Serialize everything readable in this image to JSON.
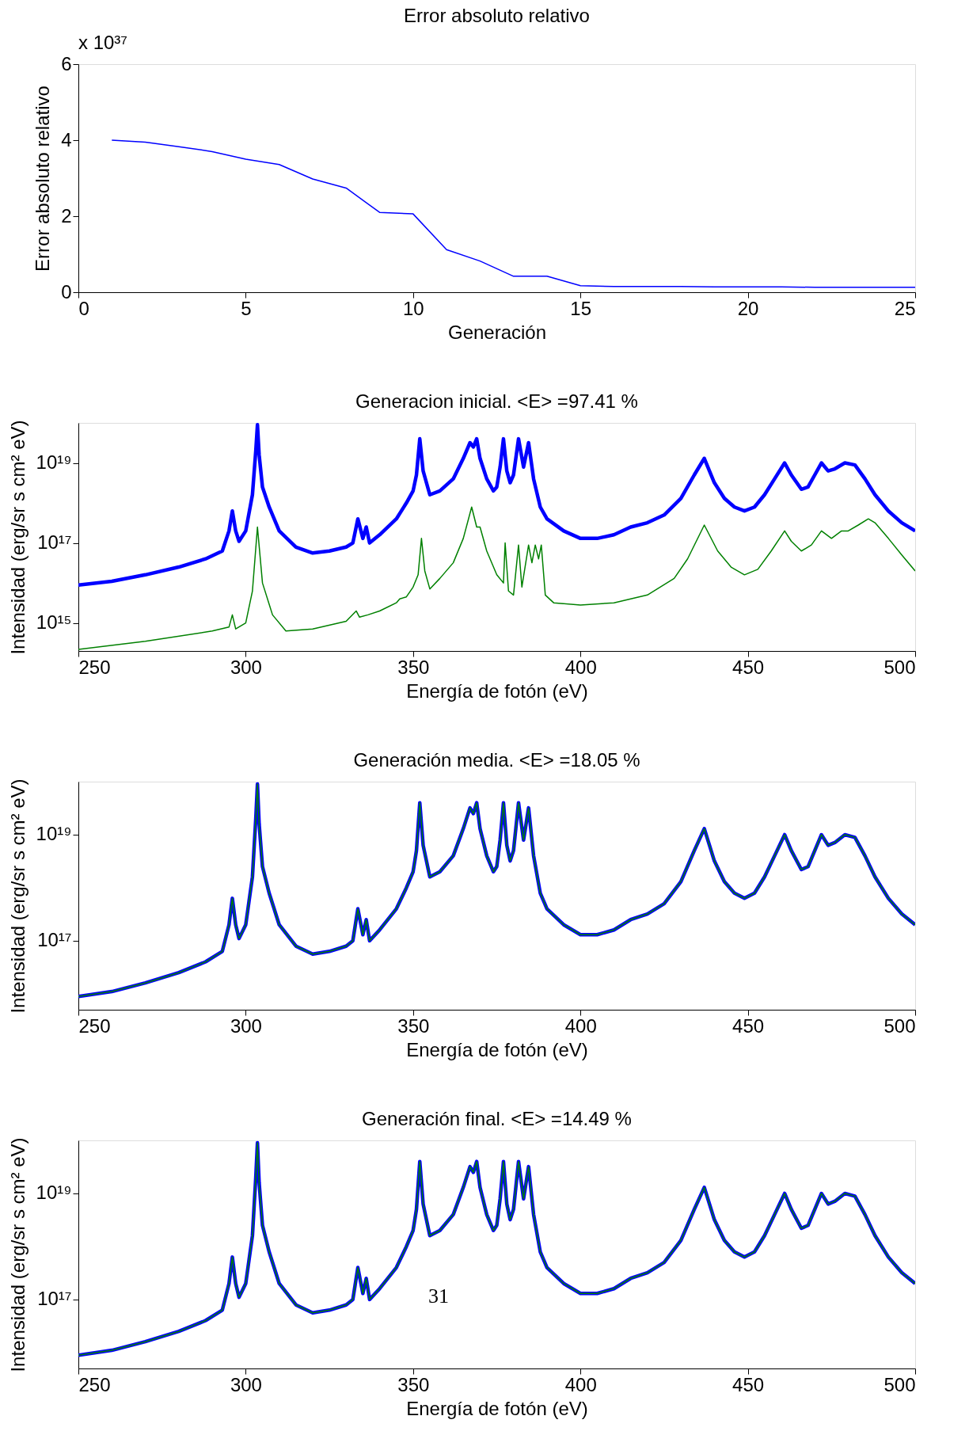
{
  "chart_data": [
    {
      "type": "line",
      "title": "Error absoluto relativo",
      "xlabel": "Generación",
      "ylabel": "Error absoluto relativo",
      "x": [
        1,
        2,
        3,
        4,
        5,
        6,
        7,
        8,
        9,
        10,
        11,
        12,
        13,
        14,
        15,
        16,
        17,
        18,
        19,
        20,
        21,
        22,
        23,
        24,
        25
      ],
      "series": [
        {
          "color": "#0000ff",
          "values": [
            4.0,
            3.95,
            3.83,
            3.7,
            3.5,
            3.36,
            2.98,
            2.74,
            2.1,
            2.06,
            1.12,
            0.82,
            0.42,
            0.42,
            0.17,
            0.15,
            0.15,
            0.15,
            0.14,
            0.14,
            0.14,
            0.13,
            0.13,
            0.13,
            0.13
          ]
        }
      ],
      "xlim": [
        0,
        25
      ],
      "xticks": [
        0,
        5,
        10,
        15,
        20,
        25
      ],
      "ylim": [
        0,
        6
      ],
      "yticks": [
        0,
        2,
        4,
        6
      ],
      "annotations": [
        "x 10³⁷"
      ]
    },
    {
      "type": "line",
      "title": "Generacion inicial. <E> =97.41 %",
      "xlabel": "Energía de fotón (eV)",
      "ylabel": "Intensidad (erg/sr s cm² eV)",
      "log": "y",
      "x": [
        250,
        260,
        270,
        280,
        288,
        293,
        295,
        296,
        297,
        298,
        300,
        302,
        303,
        303.5,
        304,
        305,
        307,
        310,
        315,
        320,
        325,
        330,
        332,
        333.5,
        335,
        336,
        337,
        340,
        345,
        348,
        350,
        351,
        352,
        353,
        355,
        358,
        362,
        365,
        367,
        368,
        369,
        370,
        372,
        374,
        375,
        376,
        377,
        378,
        379,
        380,
        381.5,
        383,
        384.5,
        386,
        388,
        390,
        395,
        400,
        405,
        410,
        415,
        420,
        425,
        430,
        434,
        437,
        440,
        443,
        446,
        449,
        452,
        455,
        458,
        461,
        463,
        466,
        468,
        470,
        472,
        474,
        476,
        479,
        482,
        485,
        488,
        492,
        496,
        500
      ],
      "series": [
        {
          "color": "#0000ff",
          "values": [
            8900000000000000.0,
            1.1e+16,
            1.6e+16,
            2.5e+16,
            4e+16,
            6.3e+16,
            2e+17,
            6.3e+17,
            2e+17,
            1.1e+17,
            2e+17,
            1.6e+18,
            2e+19,
            9e+19,
            1.6e+19,
            2.5e+18,
            7.9e+17,
            2e+17,
            7.9e+16,
            5.6e+16,
            6.3e+16,
            7.9e+16,
            1e+17,
            4e+17,
            1.3e+17,
            2.5e+17,
            1e+17,
            1.6e+17,
            4e+17,
            1e+18,
            2e+18,
            5e+18,
            4e+19,
            6.3e+18,
            1.6e+18,
            2e+18,
            4e+18,
            1.3e+19,
            3.2e+19,
            2.5e+19,
            4e+19,
            1.3e+19,
            4e+18,
            2e+18,
            2.5e+18,
            7.9e+18,
            4e+19,
            6.3e+18,
            3.2e+18,
            5e+18,
            4e+19,
            7.9e+18,
            3.2e+19,
            4e+18,
            7.9e+17,
            4e+17,
            2e+17,
            1.3e+17,
            1.3e+17,
            1.6e+17,
            2.5e+17,
            3.2e+17,
            5e+17,
            1.3e+18,
            5e+18,
            1.3e+19,
            3.2e+18,
            1.3e+18,
            7.9e+17,
            6.3e+17,
            7.9e+17,
            1.6e+18,
            4e+18,
            1e+19,
            5e+18,
            2.2e+18,
            2.5e+18,
            5e+18,
            1e+19,
            6.3e+18,
            7.1e+18,
            1e+19,
            8.9e+18,
            4e+18,
            1.6e+18,
            6.3e+17,
            3.2e+17,
            2e+17
          ]
        },
        {
          "color": "#008000",
          "x": [
            250,
            270,
            290,
            295,
            296,
            297,
            300,
            302,
            303.5,
            305,
            308,
            312,
            320,
            330,
            333,
            334,
            336.5,
            340,
            345,
            346,
            348,
            350,
            351.5,
            352.5,
            353.5,
            355,
            358,
            362,
            365,
            367.5,
            369,
            370,
            372,
            375,
            377,
            377.5,
            378.5,
            380,
            381.5,
            382.5,
            384.5,
            385.5,
            386.5,
            387.5,
            388.3,
            389.5,
            392,
            400,
            410,
            420,
            428,
            432,
            437,
            441,
            445,
            449,
            453,
            457,
            461,
            463,
            466,
            469,
            472,
            475,
            478,
            480,
            483,
            486,
            488,
            492,
            496,
            500
          ],
          "values": [
            220000000000000.0,
            350000000000000.0,
            630000000000000.0,
            790000000000000.0,
            1600000000000000.0,
            710000000000000.0,
            1000000000000000.0,
            6300000000000000.0,
            2.5e+17,
            1e+16,
            1600000000000000.0,
            630000000000000.0,
            710000000000000.0,
            1100000000000000.0,
            2000000000000000.0,
            1400000000000000.0,
            1600000000000000.0,
            2000000000000000.0,
            3200000000000000.0,
            4000000000000000.0,
            4500000000000000.0,
            7900000000000000.0,
            1.6e+16,
            1.3e+17,
            2e+16,
            7100000000000000.0,
            1.3e+16,
            3.2e+16,
            1.3e+17,
            7.9e+17,
            2.5e+17,
            2.5e+17,
            6.3e+16,
            1.6e+16,
            1e+16,
            1e+17,
            6300000000000000.0,
            5000000000000000.0,
            8.9e+16,
            7900000000000000.0,
            8.9e+16,
            3.2e+16,
            8.9e+16,
            4e+16,
            8.9e+16,
            5000000000000000.0,
            3200000000000000.0,
            2800000000000000.0,
            3200000000000000.0,
            5000000000000000.0,
            1.3e+16,
            4e+16,
            2.8e+17,
            6.3e+16,
            2.5e+16,
            1.6e+16,
            2.2e+16,
            6.3e+16,
            2e+17,
            1.1e+17,
            6.3e+16,
            8.9e+16,
            2e+17,
            1.3e+17,
            2e+17,
            2e+17,
            2.8e+17,
            4e+17,
            3.2e+17,
            1.3e+17,
            5e+16,
            2e+16
          ]
        }
      ],
      "xlim": [
        250,
        500
      ],
      "xticks": [
        250,
        300,
        350,
        400,
        450,
        500
      ],
      "ylim": [
        200000000000000.0,
        1e+20
      ],
      "yticks": [
        {
          "value": 1000000000000000.0,
          "label": "10¹⁵"
        },
        {
          "value": 1e+17,
          "label": "10¹⁷"
        },
        {
          "value": 1e+19,
          "label": "10¹⁹"
        }
      ]
    },
    {
      "type": "line",
      "title": "Generación media. <E> =18.05 %",
      "xlabel": "Energía de fotón (eV)",
      "ylabel": "Intensidad (erg/sr s cm² eV)",
      "log": "y",
      "x": [
        250,
        260,
        270,
        280,
        288,
        293,
        295,
        296,
        297,
        298,
        300,
        302,
        303,
        303.5,
        304,
        305,
        307,
        310,
        315,
        320,
        325,
        330,
        332,
        333.5,
        335,
        336,
        337,
        340,
        345,
        348,
        350,
        351,
        352,
        353,
        355,
        358,
        362,
        365,
        367,
        368,
        369,
        370,
        372,
        374,
        375,
        376,
        377,
        378,
        379,
        380,
        381.5,
        383,
        384.5,
        386,
        388,
        390,
        395,
        400,
        405,
        410,
        415,
        420,
        425,
        430,
        434,
        437,
        440,
        443,
        446,
        449,
        452,
        455,
        458,
        461,
        463,
        466,
        468,
        470,
        472,
        474,
        476,
        479,
        482,
        485,
        488,
        492,
        496,
        500
      ],
      "series": [
        {
          "color": "#0000ff",
          "values": [
            8900000000000000.0,
            1.1e+16,
            1.6e+16,
            2.5e+16,
            4e+16,
            6.3e+16,
            2e+17,
            6.3e+17,
            2e+17,
            1.1e+17,
            2e+17,
            1.6e+18,
            2e+19,
            9e+19,
            1.6e+19,
            2.5e+18,
            7.9e+17,
            2e+17,
            7.9e+16,
            5.6e+16,
            6.3e+16,
            7.9e+16,
            1e+17,
            4e+17,
            1.3e+17,
            2.5e+17,
            1e+17,
            1.6e+17,
            4e+17,
            1e+18,
            2e+18,
            5e+18,
            4e+19,
            6.3e+18,
            1.6e+18,
            2e+18,
            4e+18,
            1.3e+19,
            3.2e+19,
            2.5e+19,
            4e+19,
            1.3e+19,
            4e+18,
            2e+18,
            2.5e+18,
            7.9e+18,
            4e+19,
            6.3e+18,
            3.2e+18,
            5e+18,
            4e+19,
            7.9e+18,
            3.2e+19,
            4e+18,
            7.9e+17,
            4e+17,
            2e+17,
            1.3e+17,
            1.3e+17,
            1.6e+17,
            2.5e+17,
            3.2e+17,
            5e+17,
            1.3e+18,
            5e+18,
            1.3e+19,
            3.2e+18,
            1.3e+18,
            7.9e+17,
            6.3e+17,
            7.9e+17,
            1.6e+18,
            4e+18,
            1e+19,
            5e+18,
            2.2e+18,
            2.5e+18,
            5e+18,
            1e+19,
            6.3e+18,
            7.1e+18,
            1e+19,
            8.9e+18,
            4e+18,
            1.6e+18,
            6.3e+17,
            3.2e+17,
            2e+17
          ]
        },
        {
          "color": "#008000",
          "values": [
            8900000000000000.0,
            1.1e+16,
            1.6e+16,
            2.5e+16,
            4e+16,
            6.3e+16,
            2e+17,
            6.3e+17,
            2e+17,
            1.1e+17,
            2e+17,
            1.6e+18,
            2e+19,
            9e+19,
            1.6e+19,
            2.5e+18,
            7.9e+17,
            2e+17,
            7.9e+16,
            5.6e+16,
            6.3e+16,
            7.9e+16,
            1e+17,
            4e+17,
            1.3e+17,
            2.5e+17,
            1e+17,
            1.6e+17,
            4e+17,
            1e+18,
            2e+18,
            5e+18,
            4e+19,
            6.3e+18,
            1.6e+18,
            2e+18,
            4e+18,
            1.3e+19,
            3.2e+19,
            2.5e+19,
            4e+19,
            1.3e+19,
            4e+18,
            2e+18,
            2.5e+18,
            7.9e+18,
            4e+19,
            6.3e+18,
            3.2e+18,
            5e+18,
            4e+19,
            7.9e+18,
            3.2e+19,
            4e+18,
            7.9e+17,
            4e+17,
            2e+17,
            1.3e+17,
            1.3e+17,
            1.6e+17,
            2.5e+17,
            3.2e+17,
            5e+17,
            1.3e+18,
            5e+18,
            1.3e+19,
            3.2e+18,
            1.3e+18,
            7.9e+17,
            6.3e+17,
            7.9e+17,
            1.6e+18,
            4e+18,
            1e+19,
            5e+18,
            2.2e+18,
            2.5e+18,
            5e+18,
            1e+19,
            6.3e+18,
            7.1e+18,
            1e+19,
            8.9e+18,
            4e+18,
            1.6e+18,
            6.3e+17,
            3.2e+17,
            2e+17
          ]
        }
      ],
      "xlim": [
        250,
        500
      ],
      "xticks": [
        250,
        300,
        350,
        400,
        450,
        500
      ],
      "ylim": [
        5000000000000000.0,
        1e+20
      ],
      "yticks": [
        {
          "value": 1e+17,
          "label": "10¹⁷"
        },
        {
          "value": 1e+19,
          "label": "10¹⁹"
        }
      ]
    },
    {
      "type": "line",
      "title": "Generación final. <E> =14.49 %",
      "xlabel": "Energía de fotón (eV)",
      "ylabel": "Intensidad (erg/sr s cm² eV)",
      "log": "y",
      "x": [
        250,
        260,
        270,
        280,
        288,
        293,
        295,
        296,
        297,
        298,
        300,
        302,
        303,
        303.5,
        304,
        305,
        307,
        310,
        315,
        320,
        325,
        330,
        332,
        333.5,
        335,
        336,
        337,
        340,
        345,
        348,
        350,
        351,
        352,
        353,
        355,
        358,
        362,
        365,
        367,
        368,
        369,
        370,
        372,
        374,
        375,
        376,
        377,
        378,
        379,
        380,
        381.5,
        383,
        384.5,
        386,
        388,
        390,
        395,
        400,
        405,
        410,
        415,
        420,
        425,
        430,
        434,
        437,
        440,
        443,
        446,
        449,
        452,
        455,
        458,
        461,
        463,
        466,
        468,
        470,
        472,
        474,
        476,
        479,
        482,
        485,
        488,
        492,
        496,
        500
      ],
      "series": [
        {
          "color": "#0000ff",
          "values": [
            8900000000000000.0,
            1.1e+16,
            1.6e+16,
            2.5e+16,
            4e+16,
            6.3e+16,
            2e+17,
            6.3e+17,
            2e+17,
            1.1e+17,
            2e+17,
            1.6e+18,
            2e+19,
            9e+19,
            1.6e+19,
            2.5e+18,
            7.9e+17,
            2e+17,
            7.9e+16,
            5.6e+16,
            6.3e+16,
            7.9e+16,
            1e+17,
            4e+17,
            1.3e+17,
            2.5e+17,
            1e+17,
            1.6e+17,
            4e+17,
            1e+18,
            2e+18,
            5e+18,
            4e+19,
            6.3e+18,
            1.6e+18,
            2e+18,
            4e+18,
            1.3e+19,
            3.2e+19,
            2.5e+19,
            4e+19,
            1.3e+19,
            4e+18,
            2e+18,
            2.5e+18,
            7.9e+18,
            4e+19,
            6.3e+18,
            3.2e+18,
            5e+18,
            4e+19,
            7.9e+18,
            3.2e+19,
            4e+18,
            7.9e+17,
            4e+17,
            2e+17,
            1.3e+17,
            1.3e+17,
            1.6e+17,
            2.5e+17,
            3.2e+17,
            5e+17,
            1.3e+18,
            5e+18,
            1.3e+19,
            3.2e+18,
            1.3e+18,
            7.9e+17,
            6.3e+17,
            7.9e+17,
            1.6e+18,
            4e+18,
            1e+19,
            5e+18,
            2.2e+18,
            2.5e+18,
            5e+18,
            1e+19,
            6.3e+18,
            7.1e+18,
            1e+19,
            8.9e+18,
            4e+18,
            1.6e+18,
            6.3e+17,
            3.2e+17,
            2e+17
          ]
        },
        {
          "color": "#008000",
          "values": [
            8900000000000000.0,
            1.1e+16,
            1.6e+16,
            2.5e+16,
            4e+16,
            6.3e+16,
            2e+17,
            6.3e+17,
            2e+17,
            1.1e+17,
            2e+17,
            1.6e+18,
            2e+19,
            9e+19,
            1.6e+19,
            2.5e+18,
            7.9e+17,
            2e+17,
            7.9e+16,
            5.6e+16,
            6.3e+16,
            7.9e+16,
            1e+17,
            4e+17,
            1.3e+17,
            2.5e+17,
            1e+17,
            1.6e+17,
            4e+17,
            1e+18,
            2e+18,
            5e+18,
            4e+19,
            6.3e+18,
            1.6e+18,
            2e+18,
            4e+18,
            1.3e+19,
            3.2e+19,
            2.5e+19,
            4e+19,
            1.3e+19,
            4e+18,
            2e+18,
            2.5e+18,
            7.9e+18,
            4e+19,
            6.3e+18,
            3.2e+18,
            5e+18,
            4e+19,
            7.9e+18,
            3.2e+19,
            4e+18,
            7.9e+17,
            4e+17,
            2e+17,
            1.3e+17,
            1.3e+17,
            1.6e+17,
            2.5e+17,
            3.2e+17,
            5e+17,
            1.3e+18,
            5e+18,
            1.3e+19,
            3.2e+18,
            1.3e+18,
            7.9e+17,
            6.3e+17,
            7.9e+17,
            1.6e+18,
            4e+18,
            1e+19,
            5e+18,
            2.2e+18,
            2.5e+18,
            5e+18,
            1e+19,
            6.3e+18,
            7.1e+18,
            1e+19,
            8.9e+18,
            4e+18,
            1.6e+18,
            6.3e+17,
            3.2e+17,
            2e+17
          ]
        }
      ],
      "xlim": [
        250,
        500
      ],
      "xticks": [
        250,
        300,
        350,
        400,
        450,
        500
      ],
      "ylim": [
        5000000000000000.0,
        1e+20
      ],
      "yticks": [
        {
          "value": 1e+17,
          "label": "10¹⁷"
        },
        {
          "value": 1e+19,
          "label": "10¹⁹"
        }
      ],
      "annotations": [
        "31"
      ]
    }
  ]
}
